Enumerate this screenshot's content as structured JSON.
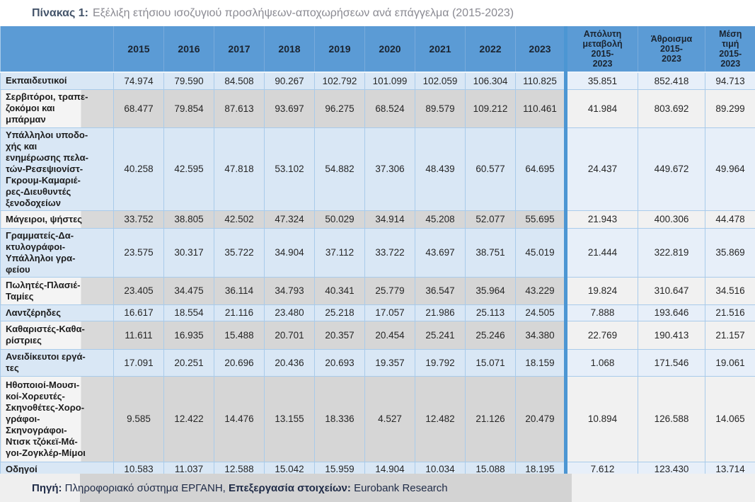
{
  "title": {
    "prefix": "Πίνακας 1:",
    "text": "Εξέλιξη ετήσιου ισοζυγιού προσλήψεων-αποχωρήσεων ανά επάγγελμα (2015-2023)"
  },
  "table": {
    "year_headers": [
      "2015",
      "2016",
      "2017",
      "2018",
      "2019",
      "2020",
      "2021",
      "2022",
      "2023"
    ],
    "summary_headers": [
      {
        "label": "Απόλυτη μεταβολή 2015-2023",
        "display": "Απόλυτη\nμεταβολή\n2015-\n2023"
      },
      {
        "label": "Άθροισμα 2015-2023",
        "display": "Άθροισμα\n2015-\n2023"
      },
      {
        "label": "Μέση τιμή 2015-2023",
        "display": "Μέση\nτιμή\n2015-\n2023"
      }
    ],
    "rows": [
      {
        "label": "Εκπαιδευτικοί",
        "display": "Εκπαιδευτικοί",
        "values": [
          "74.974",
          "79.590",
          "84.508",
          "90.267",
          "102.792",
          "101.099",
          "102.059",
          "106.304",
          "110.825"
        ],
        "summary": [
          "35.851",
          "852.418",
          "94.713"
        ],
        "shade": "blue"
      },
      {
        "label": "Σερβιτόροι, τραπεζοκόμοι και μπάρμαν",
        "display": "Σερβιτόροι, τραπε-\nζοκόμοι και\nμπάρμαν",
        "values": [
          "68.477",
          "79.854",
          "87.613",
          "93.697",
          "96.275",
          "68.524",
          "89.579",
          "109.212",
          "110.461"
        ],
        "summary": [
          "41.984",
          "803.692",
          "89.299"
        ],
        "shade": "gray"
      },
      {
        "label": "Υπάλληλοι υποδοχής και ενημέρωσης πελατών-Ρεσεψιονίστ-Γκρουμ-Καμαριέρες-Διευθυντές ξενοδοχείων",
        "display": "Υπάλληλοι υποδο-\nχής και\nενημέρωσης πελα-\nτών-Ρεσεψιονίστ-\nΓκρουμ-Καμαριέ-\nρες-Διευθυντές\nξενοδοχείων",
        "values": [
          "40.258",
          "42.595",
          "47.818",
          "53.102",
          "54.882",
          "37.306",
          "48.439",
          "60.577",
          "64.695"
        ],
        "summary": [
          "24.437",
          "449.672",
          "49.964"
        ],
        "shade": "blue"
      },
      {
        "label": "Μάγειροι, ψήστες",
        "display": "Μάγειροι, ψήστες",
        "values": [
          "33.752",
          "38.805",
          "42.502",
          "47.324",
          "50.029",
          "34.914",
          "45.208",
          "52.077",
          "55.695"
        ],
        "summary": [
          "21.943",
          "400.306",
          "44.478"
        ],
        "shade": "gray"
      },
      {
        "label": "Γραμματείς-Δακτυλογράφοι-Υπάλληλοι γραφείου",
        "display": "Γραμματείς-Δα-\nκτυλογράφοι-\nΥπάλληλοι γρα-\nφείου",
        "values": [
          "23.575",
          "30.317",
          "35.722",
          "34.904",
          "37.112",
          "33.722",
          "43.697",
          "38.751",
          "45.019"
        ],
        "summary": [
          "21.444",
          "322.819",
          "35.869"
        ],
        "shade": "blue"
      },
      {
        "label": "Πωλητές-Πλασιέ-Ταμίες",
        "display": "Πωλητές-Πλασιέ-\nΤαμίες",
        "values": [
          "23.405",
          "34.475",
          "36.114",
          "34.793",
          "40.341",
          "25.779",
          "36.547",
          "35.964",
          "43.229"
        ],
        "summary": [
          "19.824",
          "310.647",
          "34.516"
        ],
        "shade": "gray"
      },
      {
        "label": "Λαντζέρηδες",
        "display": "Λαντζέρηδες",
        "values": [
          "16.617",
          "18.554",
          "21.116",
          "23.480",
          "25.218",
          "17.057",
          "21.986",
          "25.113",
          "24.505"
        ],
        "summary": [
          "7.888",
          "193.646",
          "21.516"
        ],
        "shade": "blue"
      },
      {
        "label": "Καθαριστές-Καθαρίστριες",
        "display": "Καθαριστές-Καθα-\nρίστριες",
        "values": [
          "11.611",
          "16.935",
          "15.488",
          "20.701",
          "20.357",
          "20.454",
          "25.241",
          "25.246",
          "34.380"
        ],
        "summary": [
          "22.769",
          "190.413",
          "21.157"
        ],
        "shade": "gray"
      },
      {
        "label": "Ανειδίκευτοι εργάτες",
        "display": "Ανειδίκευτοι εργά-\nτες",
        "values": [
          "17.091",
          "20.251",
          "20.696",
          "20.436",
          "20.693",
          "19.357",
          "19.792",
          "15.071",
          "18.159"
        ],
        "summary": [
          "1.068",
          "171.546",
          "19.061"
        ],
        "shade": "blue"
      },
      {
        "label": "Ηθοποιοί-Μουσικοί-Χορευτές-Σκηνοθέτες-Χορογράφοι-Σκηνογράφοι-Ντισκ τζόκεϊ-Μάγοι-Ζογκλέρ-Μίμοι",
        "display": "Ηθοποιοί-Μουσι-\nκοί-Χορευτές-\nΣκηνοθέτες-Χορο-\nγράφοι-\nΣκηνογράφοι-\nΝτισκ τζόκεϊ-Μά-\nγοι-Ζογκλέρ-Μίμοι",
        "values": [
          "9.585",
          "12.422",
          "14.476",
          "13.155",
          "18.336",
          "4.527",
          "12.482",
          "21.126",
          "20.479"
        ],
        "summary": [
          "10.894",
          "126.588",
          "14.065"
        ],
        "shade": "gray"
      },
      {
        "label": "Οδηγοί",
        "display": "Οδηγοί",
        "values": [
          "10.583",
          "11.037",
          "12.588",
          "15.042",
          "15.959",
          "14.904",
          "10.034",
          "15.088",
          "18.195"
        ],
        "summary": [
          "7.612",
          "123.430",
          "13.714"
        ],
        "shade": "blue"
      }
    ]
  },
  "footer": {
    "source_label": "Πηγή:",
    "source_text": " Πληροφοριακό σύστημα ΕΡΓΑΝΗ, ",
    "processing_label": "Επεξεργασία στοιχείων:",
    "processing_text": " Eurobank Research"
  },
  "colors": {
    "header_blue": "#5B9BD5",
    "row_blue": "#D9E7F5",
    "row_blue_summary": "#E7EFF9",
    "row_gray": "#D6D6D6",
    "row_gray_summary": "#F1F1F1",
    "grid_border": "#A9CBEA",
    "divider_blue": "#4C96D3",
    "title_prefix": "#44546A",
    "title_text": "#8A8A92",
    "footer_text": "#1F2B47",
    "footer_band": "#D3D3D3"
  }
}
